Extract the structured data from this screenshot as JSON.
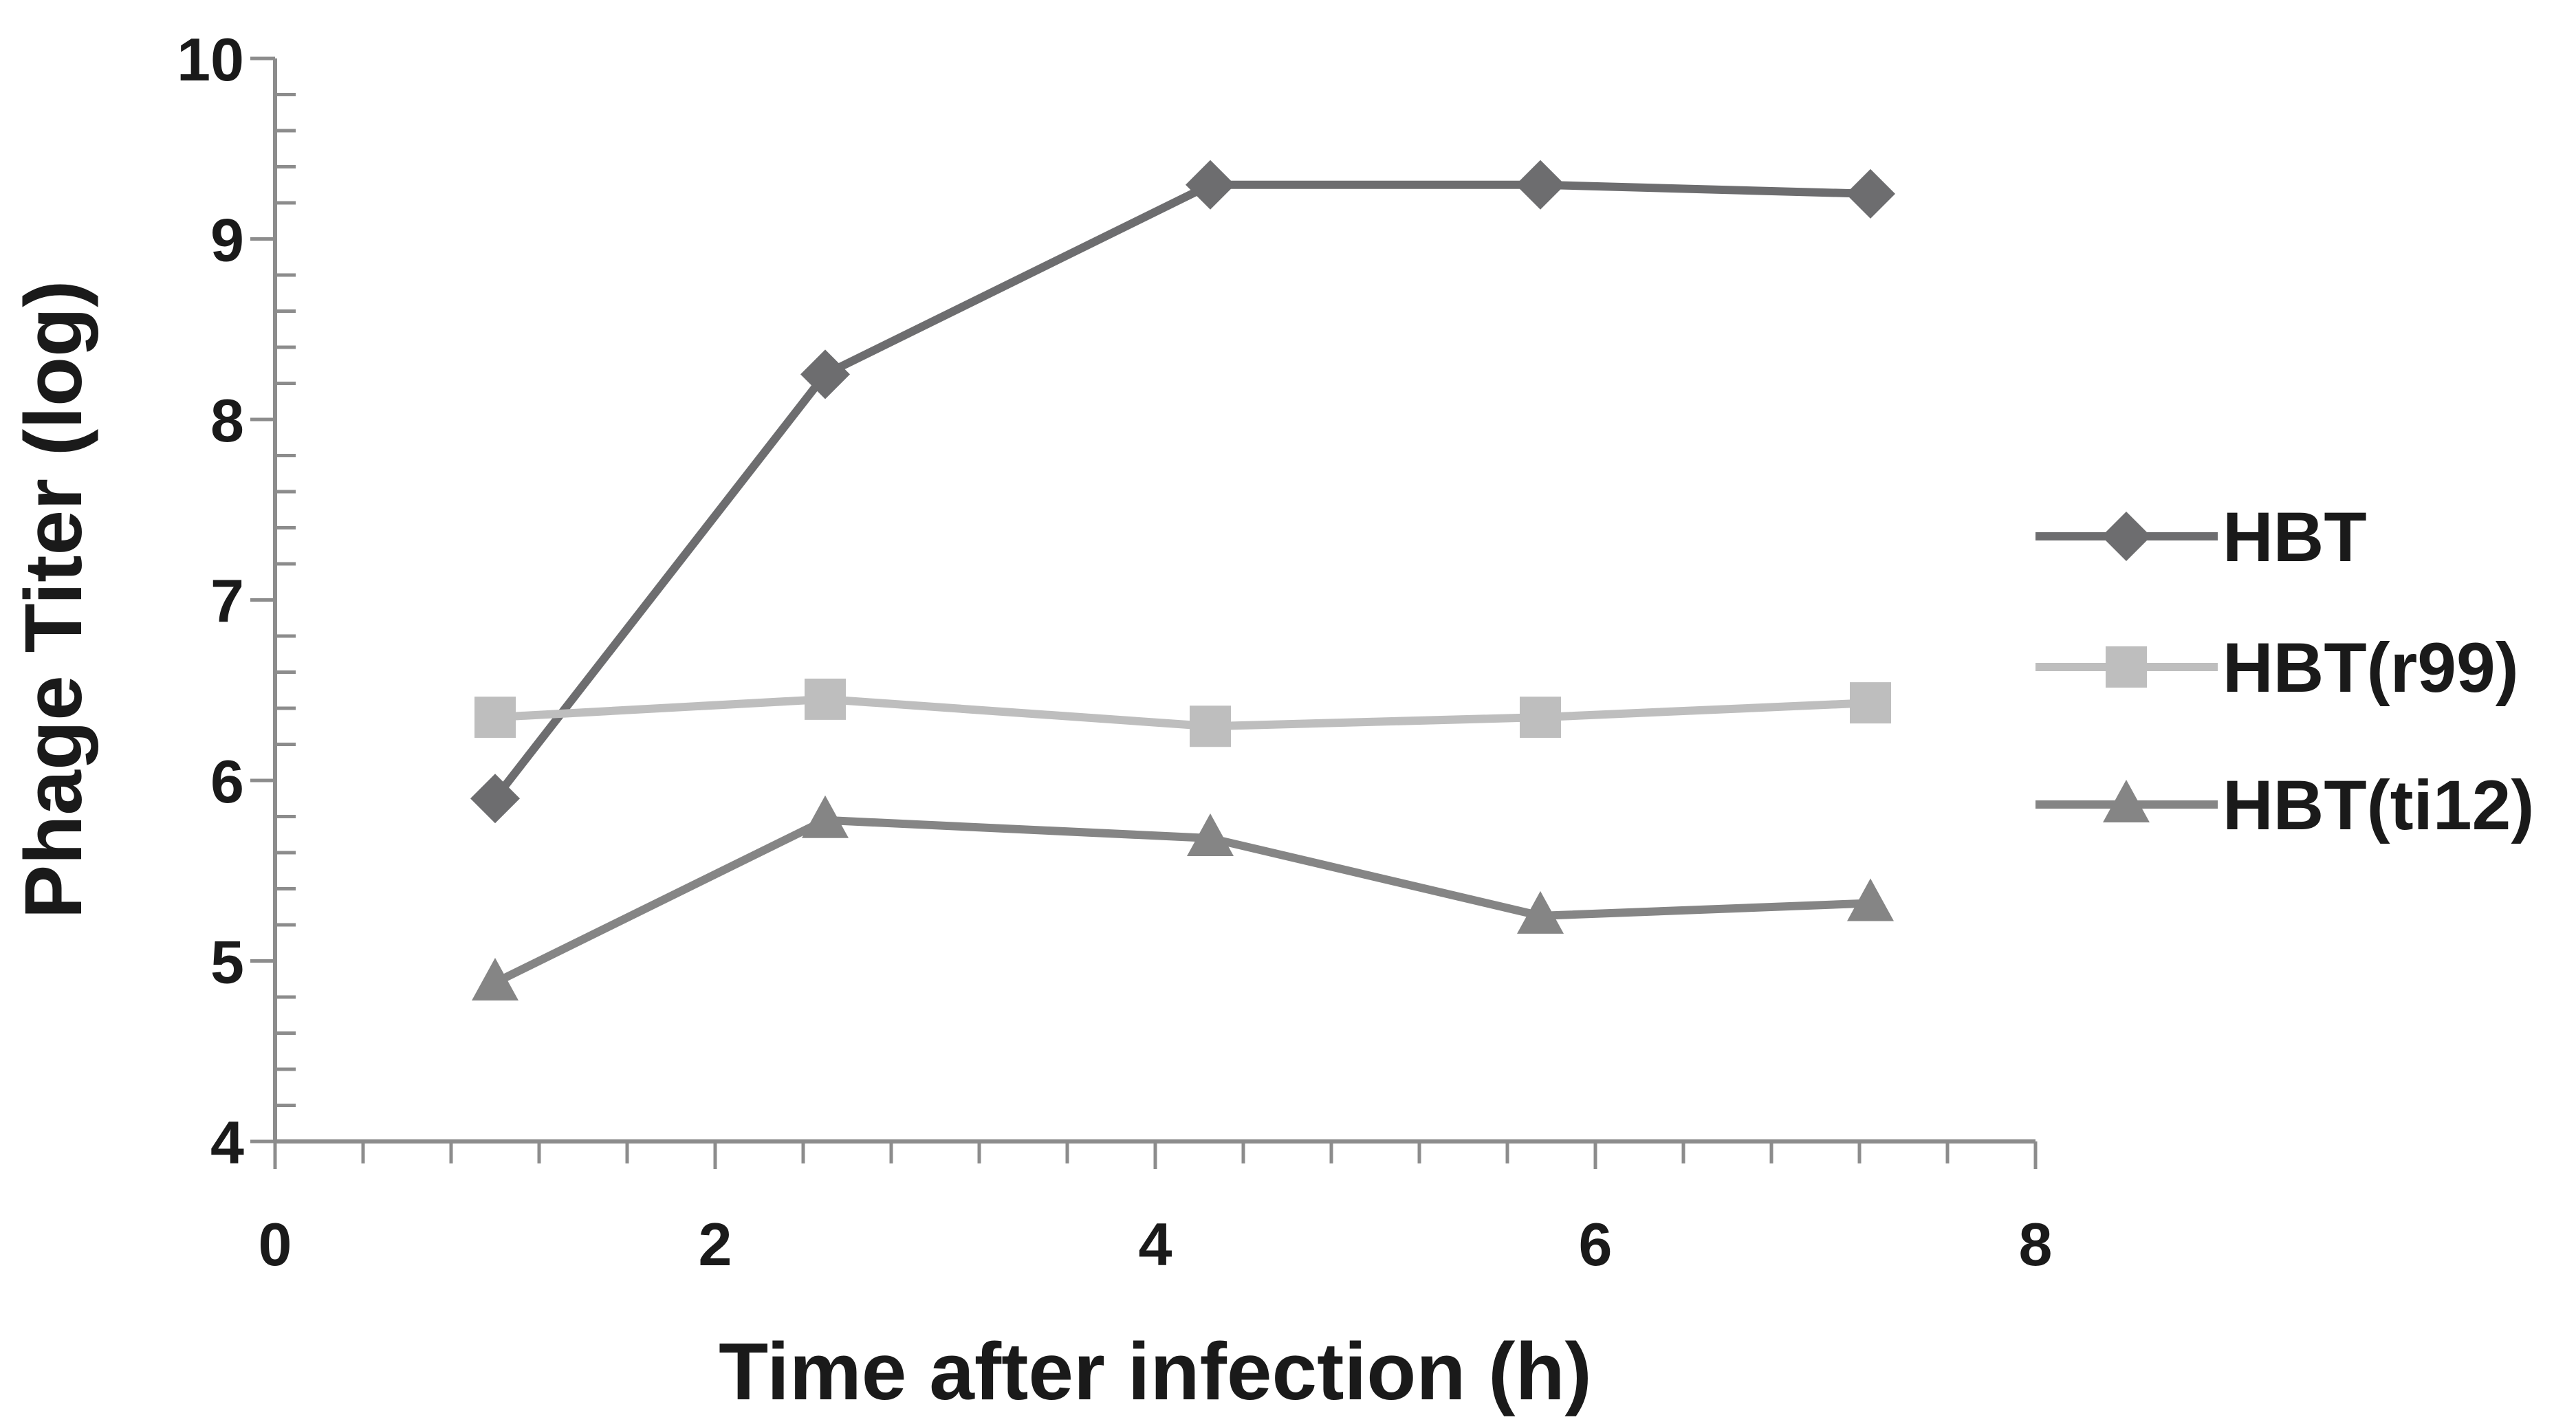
{
  "chart_data": {
    "type": "line",
    "title": "",
    "xlabel": "Time after infection (h)",
    "ylabel": "Phage Titer (log)",
    "xlim": [
      0,
      8
    ],
    "ylim": [
      4,
      10
    ],
    "x_ticks": [
      "0",
      "2",
      "4",
      "6",
      "8"
    ],
    "y_ticks": [
      "4",
      "5",
      "6",
      "7",
      "8",
      "9",
      "10"
    ],
    "grid": false,
    "legend_position": "right",
    "series": [
      {
        "name": "HBT",
        "color": "#6d6d6f",
        "marker": "diamond",
        "x": [
          1.0,
          2.5,
          4.25,
          5.75,
          7.25
        ],
        "y": [
          5.9,
          8.25,
          9.3,
          9.3,
          9.25
        ]
      },
      {
        "name": "HBT(r99)",
        "color": "#bebebe",
        "marker": "square",
        "x": [
          1.0,
          2.5,
          4.25,
          5.75,
          7.25
        ],
        "y": [
          6.35,
          6.45,
          6.3,
          6.35,
          6.43
        ]
      },
      {
        "name": "HBT(ti12)",
        "color": "#858585",
        "marker": "triangle",
        "x": [
          1.0,
          2.5,
          4.25,
          5.75,
          7.25
        ],
        "y": [
          4.88,
          5.78,
          5.68,
          5.25,
          5.32
        ]
      }
    ]
  }
}
